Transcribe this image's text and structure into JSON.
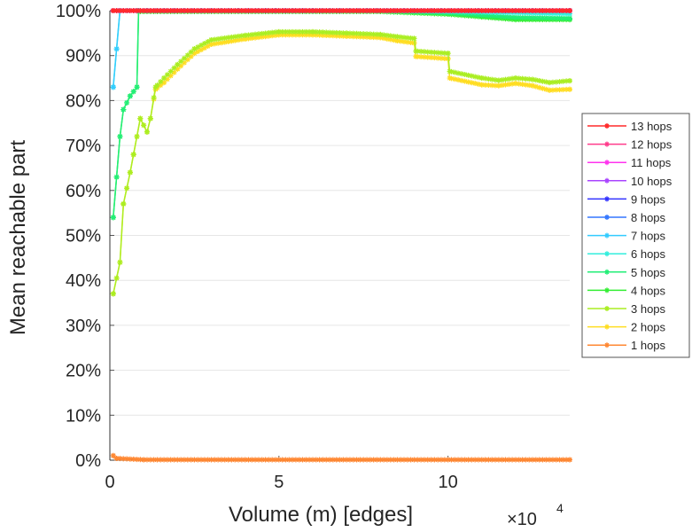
{
  "chart_data": {
    "type": "line",
    "title": "",
    "xlabel": "Volume (m) [edges]",
    "xlabel_multiplier": "×10",
    "xlabel_multiplier_exp": "4",
    "ylabel": "Mean reachable part",
    "xlim": [
      0,
      13.6
    ],
    "ylim": [
      0,
      100
    ],
    "xticks": [
      0,
      5,
      10
    ],
    "xtick_labels": [
      "0",
      "5",
      "10"
    ],
    "yticks": [
      0,
      10,
      20,
      30,
      40,
      50,
      60,
      70,
      80,
      90,
      100
    ],
    "ytick_labels": [
      "0%",
      "10%",
      "20%",
      "30%",
      "40%",
      "50%",
      "60%",
      "70%",
      "80%",
      "90%",
      "100%"
    ],
    "grid": true,
    "legend_position": "right",
    "series": [
      {
        "name": "13 hops",
        "color": "#ff2a2a",
        "x": [
          0.1,
          13.6
        ],
        "y": [
          100,
          100
        ]
      },
      {
        "name": "12 hops",
        "color": "#ff3c8c",
        "x": [
          0.1,
          13.6
        ],
        "y": [
          100,
          100
        ]
      },
      {
        "name": "11 hops",
        "color": "#ff33ee",
        "x": [
          0.1,
          13.6
        ],
        "y": [
          100,
          100
        ]
      },
      {
        "name": "10 hops",
        "color": "#aa44ff",
        "x": [
          0.1,
          13.6
        ],
        "y": [
          100,
          100
        ]
      },
      {
        "name": "9 hops",
        "color": "#3333ff",
        "x": [
          0.1,
          13.6
        ],
        "y": [
          100,
          100
        ]
      },
      {
        "name": "8 hops",
        "color": "#3377ff",
        "x": [
          0.1,
          13.6
        ],
        "y": [
          100,
          100
        ]
      },
      {
        "name": "7 hops",
        "color": "#33ccff",
        "x": [
          0.1,
          0.3,
          13.6
        ],
        "y": [
          83,
          100,
          100
        ]
      },
      {
        "name": "6 hops",
        "color": "#33eedd",
        "x": [
          0.1,
          0.3,
          8,
          10,
          13.6
        ],
        "y": [
          83,
          100,
          100,
          99.8,
          99.3
        ]
      },
      {
        "name": "5 hops",
        "color": "#22ee77",
        "x": [
          0.1,
          0.3,
          0.4,
          0.6,
          0.8,
          0.85,
          8,
          9,
          10,
          11,
          12,
          13.6
        ],
        "y": [
          54,
          72,
          78,
          81,
          83,
          100,
          100,
          99.8,
          99.5,
          99,
          98.5,
          98.3
        ]
      },
      {
        "name": "4 hops",
        "color": "#33ee33",
        "x": [
          0.1,
          0.3,
          0.4,
          0.6,
          0.8,
          0.85,
          8,
          9,
          10,
          11,
          12,
          13.6
        ],
        "y": [
          54,
          72,
          78,
          81,
          83,
          99.8,
          99.8,
          99.5,
          99.2,
          98.6,
          98,
          98
        ]
      },
      {
        "name": "3 hops",
        "color": "#aaee22",
        "x": [
          0.1,
          0.3,
          0.4,
          0.6,
          0.7,
          0.8,
          0.9,
          1.1,
          1.2,
          1.35,
          1.6,
          2,
          2.5,
          3,
          4,
          5,
          6,
          7,
          8,
          8.5,
          9,
          9.05,
          10,
          10.05,
          11,
          11.5,
          12,
          12.5,
          13,
          13.6
        ],
        "y": [
          37,
          44,
          57,
          64,
          68,
          72,
          76,
          73,
          76,
          83,
          85,
          88,
          91.5,
          93.5,
          94.5,
          95.3,
          95.3,
          95,
          94.7,
          94.2,
          93.8,
          91,
          90.5,
          86.5,
          85,
          84.5,
          85,
          84.7,
          84,
          84.4
        ]
      },
      {
        "name": "2 hops",
        "color": "#ffdd22",
        "x": [
          0.1,
          0.3,
          0.4,
          0.6,
          0.7,
          0.8,
          0.9,
          1.1,
          1.2,
          1.35,
          1.6,
          2,
          2.5,
          3,
          4,
          5,
          6,
          7,
          8,
          8.5,
          9,
          9.05,
          10,
          10.05,
          11,
          11.5,
          12,
          12.5,
          13,
          13.6
        ],
        "y": [
          37,
          44,
          57,
          64,
          68,
          72,
          76,
          73,
          76,
          82.5,
          84,
          87,
          90.5,
          92.5,
          93.7,
          94.6,
          94.6,
          94.3,
          94,
          93.3,
          92.8,
          89.8,
          89.3,
          85,
          83.5,
          83.3,
          83.8,
          83.3,
          82.3,
          82.5
        ]
      },
      {
        "name": "1 hops",
        "color": "#ff8833",
        "x": [
          0.1,
          0.2,
          1,
          13.6
        ],
        "y": [
          1,
          0.4,
          0.1,
          0.1
        ]
      }
    ]
  }
}
